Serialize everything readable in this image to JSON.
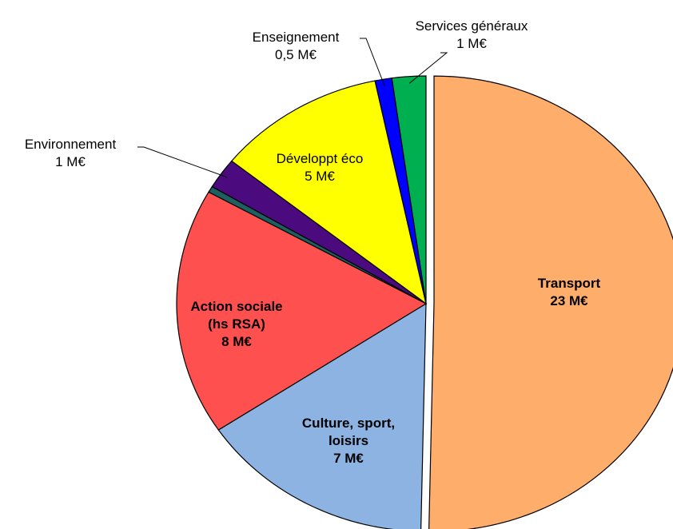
{
  "chart_data": {
    "type": "pie",
    "categories": [
      "Transport",
      "Culture, sport, loisirs",
      "Action sociale (hs RSA)",
      null,
      "Environnement",
      "Développt éco",
      "Enseignement",
      "Services généraux"
    ],
    "values": [
      23,
      7,
      8,
      0.2,
      1,
      5,
      0.5,
      1
    ],
    "value_labels": [
      "23 M€",
      "7 M€",
      "8 M€",
      null,
      "1 M€",
      "5 M€",
      "0,5 M€",
      "1 M€"
    ],
    "colors": [
      "#FFAD6B",
      "#8DB3E2",
      "#FF5050",
      "#1F5F5F",
      "#4B0A7E",
      "#FFFF00",
      "#0000FF",
      "#00B050"
    ]
  }
}
